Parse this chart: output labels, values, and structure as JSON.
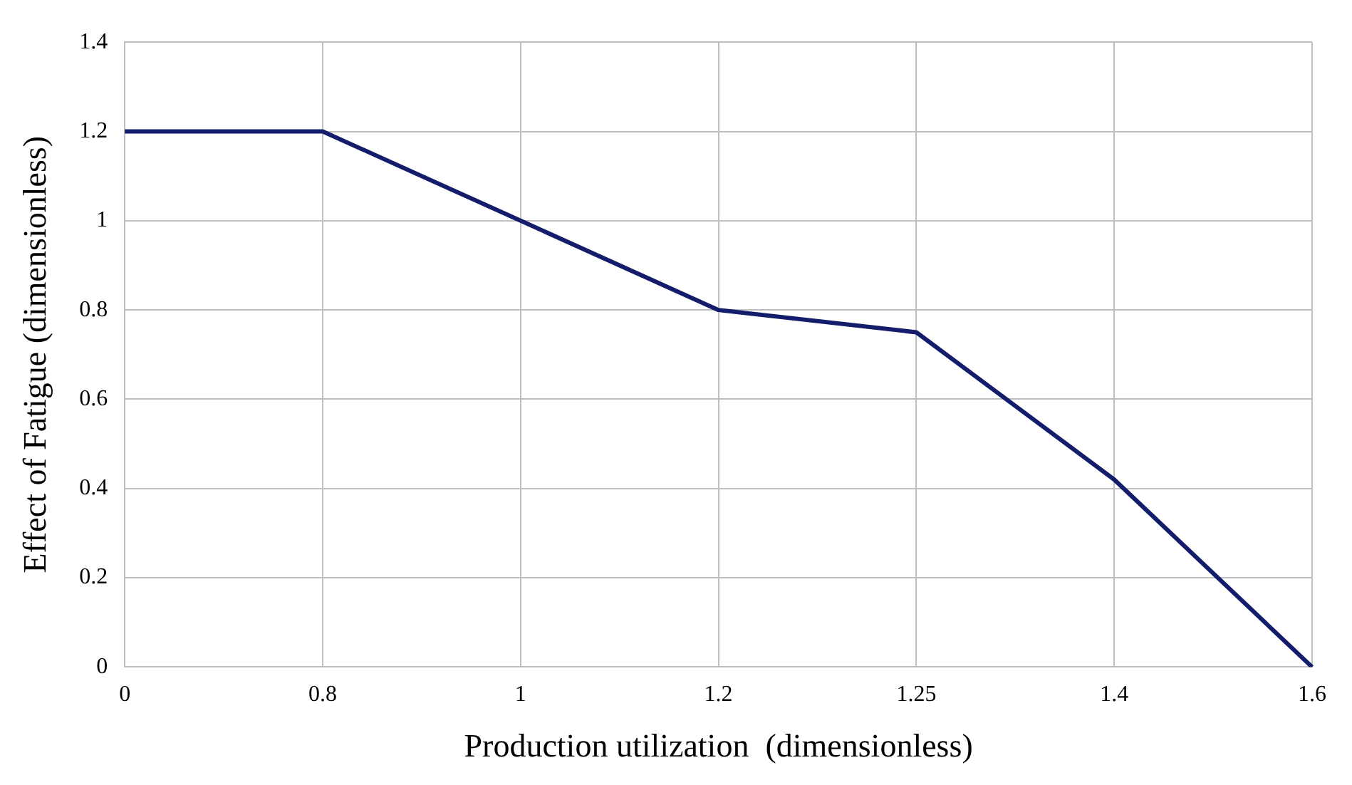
{
  "chart_data": {
    "type": "line",
    "xlabel": "Production utilization  (dimensionless)",
    "ylabel": "Effect of Fatigue (dimensionless)",
    "categories": [
      "0",
      "0.8",
      "1",
      "1.2",
      "1.25",
      "1.4",
      "1.6"
    ],
    "series": [
      {
        "color": "#141d6b",
        "values": [
          1.2,
          1.2,
          1.0,
          0.8,
          0.75,
          0.42,
          0
        ]
      }
    ],
    "ylim": [
      0,
      1.4
    ],
    "yticks": [
      0,
      0.2,
      0.4,
      0.6,
      0.8,
      1,
      1.2,
      1.4
    ],
    "grid": true,
    "legend": false,
    "marker": "none",
    "line_style": "solid"
  }
}
